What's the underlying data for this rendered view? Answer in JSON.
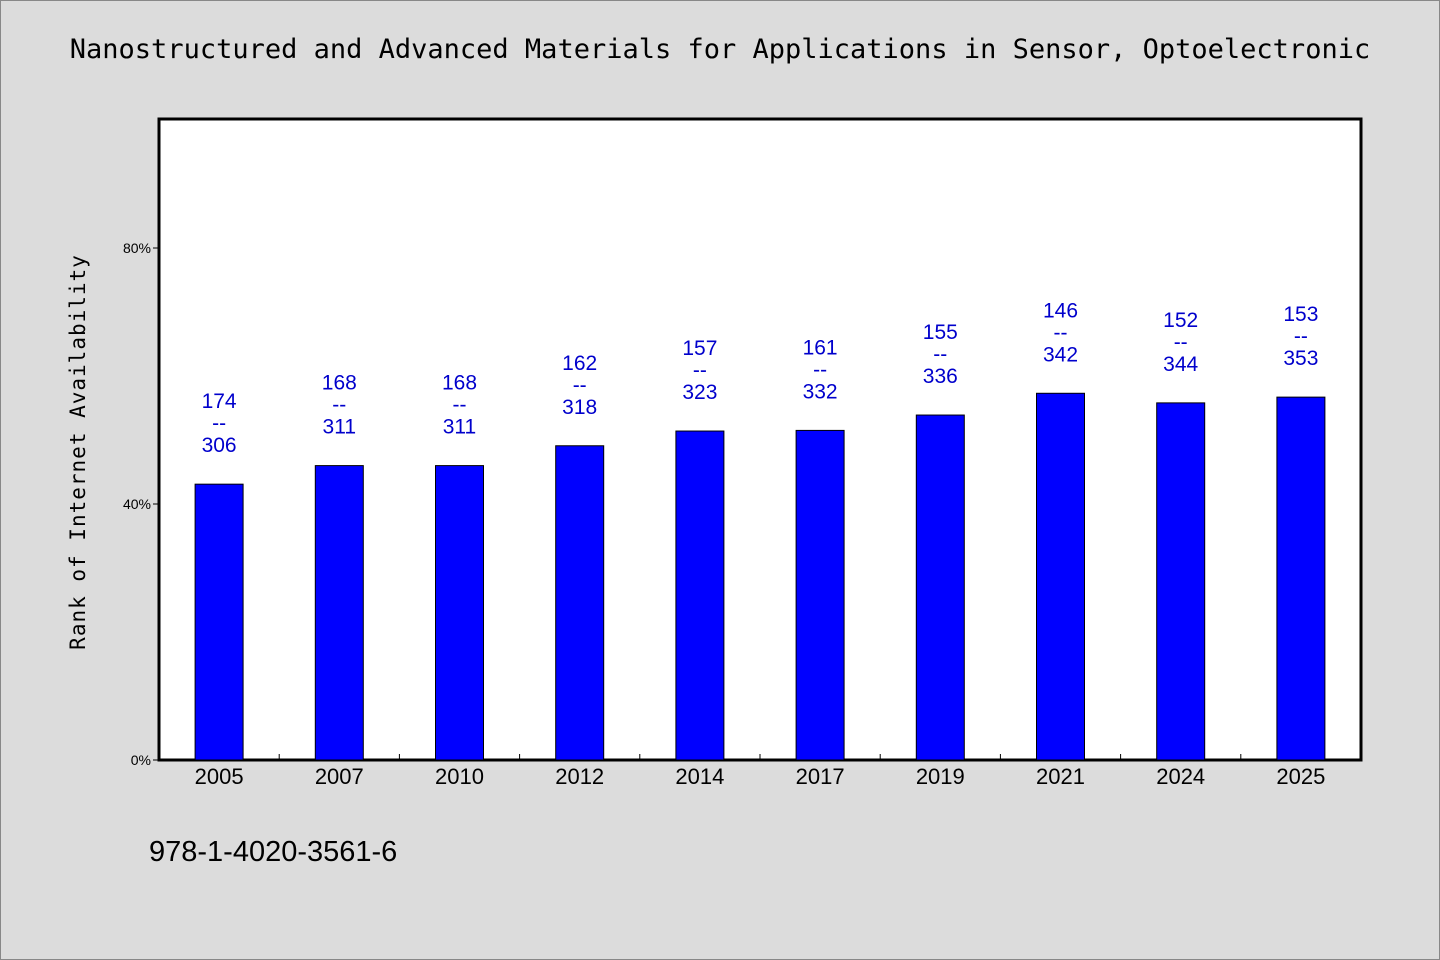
{
  "page": {
    "title": "Nanostructured and Advanced Materials for Applications in Sensor, Optoelectronic",
    "isbn": "978-1-4020-3561-6"
  },
  "colors": {
    "bar": "#0000ff",
    "label": "#0000cc",
    "plot_bg": "#ffffff",
    "page_bg": "#dcdcdc"
  },
  "chart_data": {
    "type": "bar",
    "title": "Nanostructured and Advanced Materials for Applications in Sensor, Optoelectronic",
    "xlabel": "",
    "ylabel": "Rank of Internet Availability",
    "ylim": [
      0,
      100
    ],
    "yticks": [
      {
        "value": 0,
        "label": "0%"
      },
      {
        "value": 40,
        "label": "40%"
      },
      {
        "value": 80,
        "label": "80%"
      }
    ],
    "categories": [
      "2005",
      "2007",
      "2010",
      "2012",
      "2014",
      "2017",
      "2019",
      "2021",
      "2024",
      "2025"
    ],
    "values": [
      43.1,
      46.0,
      46.0,
      49.1,
      51.4,
      51.5,
      53.9,
      57.3,
      55.8,
      56.7
    ],
    "data_labels": [
      {
        "top": "174",
        "sep": "--",
        "bottom": "306"
      },
      {
        "top": "168",
        "sep": "--",
        "bottom": "311"
      },
      {
        "top": "168",
        "sep": "--",
        "bottom": "311"
      },
      {
        "top": "162",
        "sep": "--",
        "bottom": "318"
      },
      {
        "top": "157",
        "sep": "--",
        "bottom": "323"
      },
      {
        "top": "161",
        "sep": "--",
        "bottom": "332"
      },
      {
        "top": "155",
        "sep": "--",
        "bottom": "336"
      },
      {
        "top": "146",
        "sep": "--",
        "bottom": "342"
      },
      {
        "top": "152",
        "sep": "--",
        "bottom": "344"
      },
      {
        "top": "153",
        "sep": "--",
        "bottom": "353"
      }
    ],
    "grid": false,
    "legend": "none"
  }
}
